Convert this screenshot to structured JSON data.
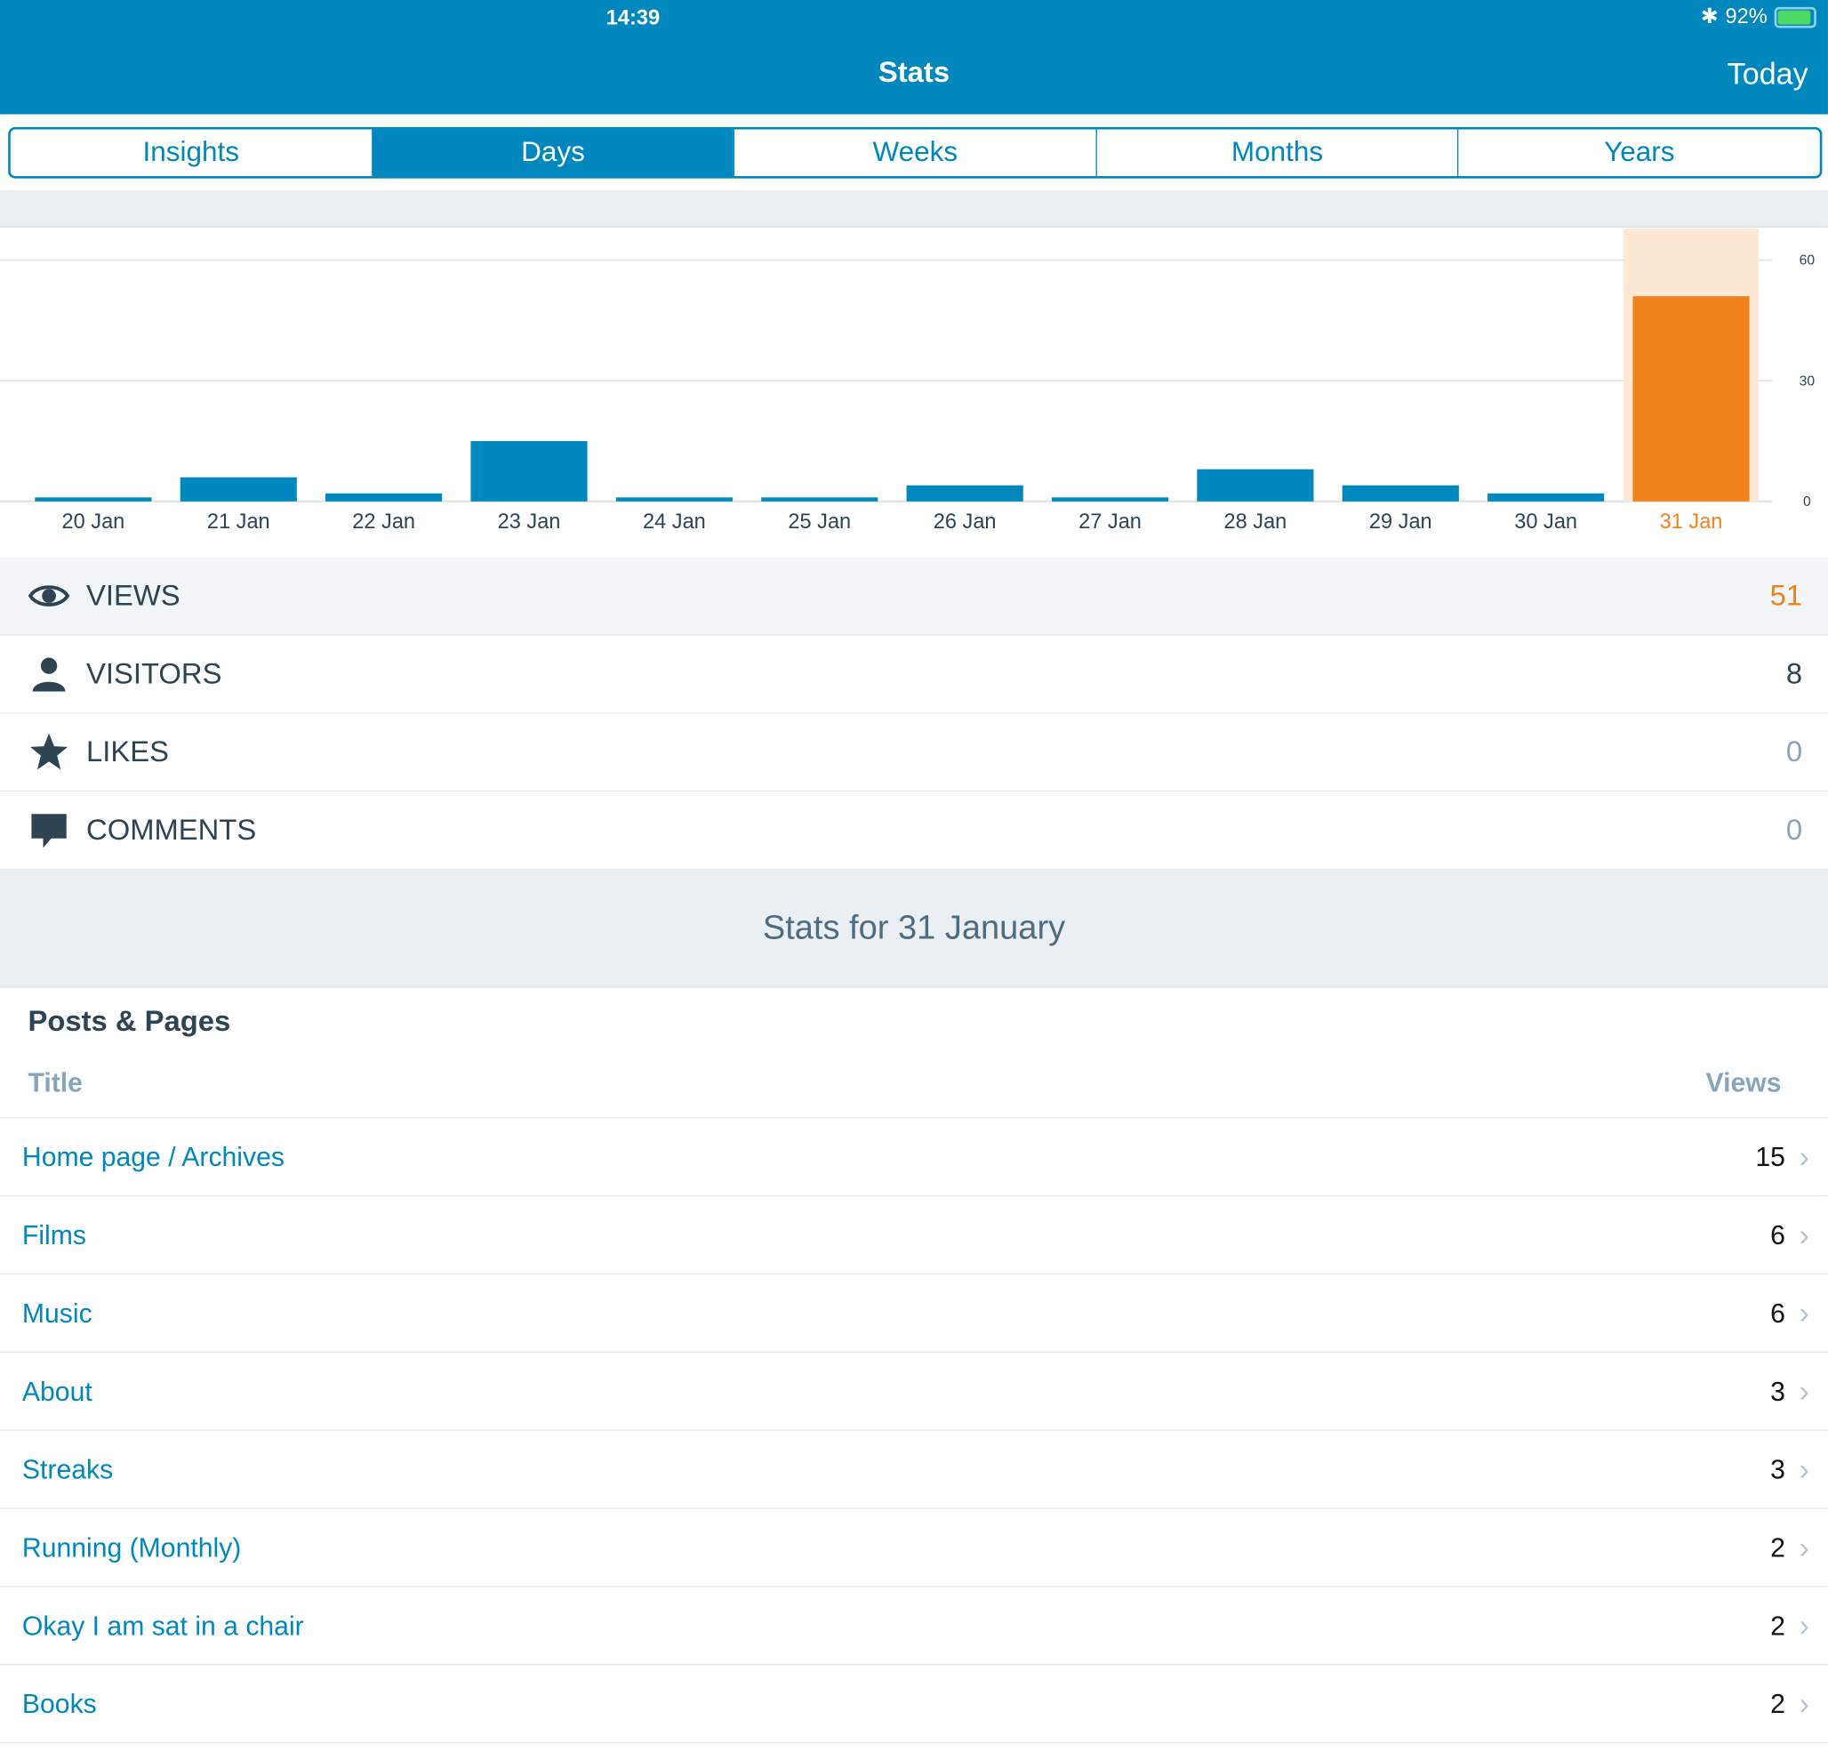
{
  "status": {
    "time": "14:39",
    "battery": "92%",
    "battery_level": 0.92
  },
  "nav": {
    "title": "Stats",
    "today": "Today"
  },
  "tabs": [
    {
      "label": "Insights"
    },
    {
      "label": "Days",
      "active": true
    },
    {
      "label": "Weeks"
    },
    {
      "label": "Months"
    },
    {
      "label": "Years"
    }
  ],
  "colors": {
    "accent": "#0087be",
    "highlight": "#f0821e"
  },
  "chart_data": {
    "type": "bar",
    "categories": [
      "20 Jan",
      "21 Jan",
      "22 Jan",
      "23 Jan",
      "24 Jan",
      "25 Jan",
      "26 Jan",
      "27 Jan",
      "28 Jan",
      "29 Jan",
      "30 Jan",
      "31 Jan"
    ],
    "values": [
      1,
      6,
      2,
      15,
      1,
      1,
      4,
      1,
      8,
      4,
      2,
      51
    ],
    "selected": "31 Jan",
    "yticks": [
      "0",
      "30",
      "60"
    ],
    "ylim": [
      0,
      68
    ],
    "grid": true
  },
  "summary": [
    {
      "icon": "eye-icon",
      "label": "VIEWS",
      "value": "51"
    },
    {
      "icon": "person-icon",
      "label": "VISITORS",
      "value": "8"
    },
    {
      "icon": "star-icon",
      "label": "LIKES",
      "value": "0"
    },
    {
      "icon": "comment-icon",
      "label": "COMMENTS",
      "value": "0"
    }
  ],
  "stats_for": "Stats for 31 January",
  "posts": {
    "heading": "Posts & Pages",
    "col_title": "Title",
    "col_views": "Views",
    "rows": [
      {
        "title": "Home page / Archives",
        "views": "15"
      },
      {
        "title": "Films",
        "views": "6"
      },
      {
        "title": "Music",
        "views": "6"
      },
      {
        "title": "About",
        "views": "3"
      },
      {
        "title": "Streaks",
        "views": "3"
      },
      {
        "title": "Running (Monthly)",
        "views": "2"
      },
      {
        "title": "Okay I am sat in a chair",
        "views": "2"
      },
      {
        "title": "Books",
        "views": "2"
      }
    ]
  }
}
